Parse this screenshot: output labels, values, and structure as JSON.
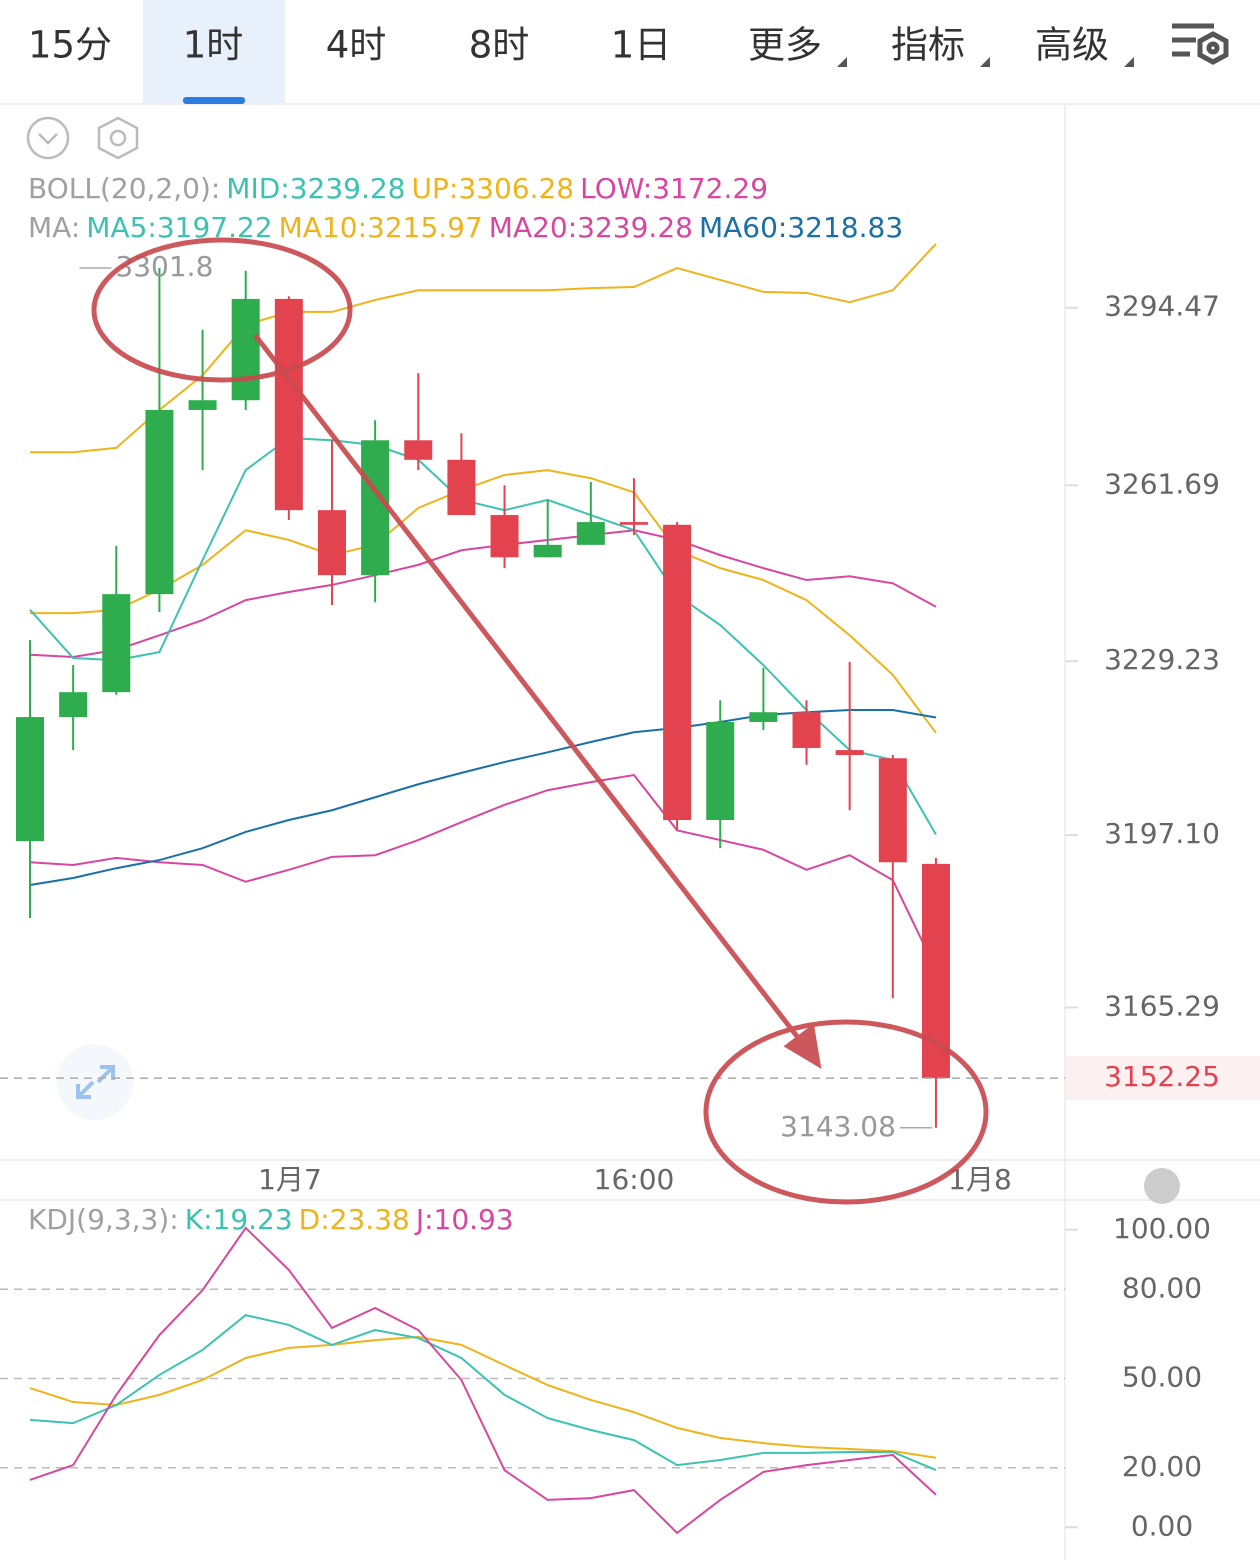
{
  "tabs": {
    "items": [
      "15分",
      "1时",
      "4时",
      "8时",
      "1日",
      "更多",
      "指标",
      "高级"
    ],
    "active": 1
  },
  "price_chart": {
    "type": "candlestick",
    "up_color": "#2eac4e",
    "down_color": "#e3434f",
    "legend": [
      [
        {
          "text": "BOLL(20,2,0):",
          "color": "#a0a0a0"
        },
        {
          "text": "MID:3239.28",
          "color": "#3cc2b0"
        },
        {
          "text": "UP:3306.28",
          "color": "#f0b31a"
        },
        {
          "text": "LOW:3172.29",
          "color": "#d9469f"
        }
      ],
      [
        {
          "text": "MA:",
          "color": "#a0a0a0"
        },
        {
          "text": "MA5:3197.22",
          "color": "#3cc2b0"
        },
        {
          "text": "MA10:3215.97",
          "color": "#f0b31a"
        },
        {
          "text": "MA20:3239.28",
          "color": "#d9469f"
        },
        {
          "text": "MA60:3218.83",
          "color": "#1a6fa8"
        }
      ]
    ],
    "ylim": [
      3137.5,
      3331.9
    ],
    "yticks": [
      3294.47,
      3261.69,
      3229.23,
      {
        "value": 3197.1,
        "label": "3197.10"
      },
      3165.29
    ],
    "candles": [
      {
        "open": 3196.0,
        "high": 3233.1,
        "low": 3181.8,
        "close": 3218.9
      },
      {
        "open": 3218.9,
        "high": 3228.5,
        "low": 3212.8,
        "close": 3223.5
      },
      {
        "open": 3223.5,
        "high": 3250.5,
        "low": 3223.0,
        "close": 3241.6
      },
      {
        "open": 3241.6,
        "high": 3301.8,
        "low": 3238.3,
        "close": 3275.6
      },
      {
        "open": 3275.6,
        "high": 3290.4,
        "low": 3264.5,
        "close": 3277.4
      },
      {
        "open": 3277.4,
        "high": 3301.31,
        "low": 3275.6,
        "close": 3296.1
      },
      {
        "open": 3296.1,
        "high": 3296.6,
        "low": 3255.3,
        "close": 3257.1
      },
      {
        "open": 3257.1,
        "high": 3270.0,
        "low": 3239.6,
        "close": 3245.1
      },
      {
        "open": 3245.1,
        "high": 3273.7,
        "low": 3240.1,
        "close": 3270.0
      },
      {
        "open": 3270.0,
        "high": 3282.4,
        "low": 3264.5,
        "close": 3266.4
      },
      {
        "open": 3266.4,
        "high": 3271.3,
        "low": 3256.2,
        "close": 3256.2
      },
      {
        "open": 3256.2,
        "high": 3261.7,
        "low": 3246.4,
        "close": 3248.4
      },
      {
        "open": 3248.4,
        "high": 3259.0,
        "low": 3248.4,
        "close": 3250.7
      },
      {
        "open": 3250.7,
        "high": 3262.3,
        "low": 3250.7,
        "close": 3254.9
      },
      {
        "open": 3254.9,
        "high": 3263.0,
        "low": 3252.5,
        "close": 3254.4
      },
      {
        "open": 3254.4,
        "high": 3254.9,
        "low": 3198.1,
        "close": 3199.9
      },
      {
        "open": 3199.9,
        "high": 3222.0,
        "low": 3194.7,
        "close": 3218.0
      },
      {
        "open": 3218.0,
        "high": 3228.0,
        "low": 3216.5,
        "close": 3219.8
      },
      {
        "open": 3219.8,
        "high": 3222.0,
        "low": 3210.1,
        "close": 3213.2
      },
      {
        "open": 3212.8,
        "high": 3229.1,
        "low": 3201.7,
        "close": 3211.9
      },
      {
        "open": 3211.3,
        "high": 3211.9,
        "low": 3167.0,
        "close": 3192.1
      },
      {
        "open": 3191.8,
        "high": 3192.9,
        "low": 3143.08,
        "close": 3152.25
      }
    ],
    "series": [
      {
        "name": "UP",
        "color": "#f0b31a",
        "values": [
          3267.8,
          3267.8,
          3268.6,
          3275.6,
          3282.0,
          3291.3,
          3293.7,
          3293.7,
          3295.9,
          3297.7,
          3297.7,
          3297.7,
          3297.7,
          3298.1,
          3298.3,
          3301.8,
          3299.6,
          3297.4,
          3297.2,
          3295.5,
          3297.7,
          3306.28
        ]
      },
      {
        "name": "MA10",
        "color": "#f0b31a",
        "values": [
          3238.1,
          3238.1,
          3238.7,
          3242.4,
          3247.0,
          3253.4,
          3251.6,
          3248.8,
          3250.7,
          3257.5,
          3260.8,
          3263.6,
          3264.5,
          3263.0,
          3260.4,
          3249.7,
          3246.4,
          3244.2,
          3240.5,
          3234.0,
          3226.7,
          3215.97
        ]
      },
      {
        "name": "MA20",
        "color": "#d9469f",
        "values": [
          3230.4,
          3230.0,
          3231.3,
          3234.0,
          3236.8,
          3240.5,
          3242.0,
          3243.3,
          3245.1,
          3247.0,
          3249.7,
          3250.7,
          3251.6,
          3252.5,
          3253.4,
          3251.6,
          3248.8,
          3246.4,
          3244.2,
          3244.9,
          3243.6,
          3239.28
        ]
      },
      {
        "name": "LOW",
        "color": "#d9469f",
        "values": [
          3192.1,
          3191.6,
          3192.9,
          3192.1,
          3191.6,
          3188.5,
          3190.7,
          3193.1,
          3193.4,
          3196.2,
          3199.5,
          3202.7,
          3205.4,
          3206.9,
          3208.2,
          3198.0,
          3196.2,
          3194.4,
          3190.7,
          3193.4,
          3188.8,
          3172.29
        ]
      },
      {
        "name": "MA60",
        "color": "#1a6fa8",
        "values": [
          3187.9,
          3189.2,
          3191.0,
          3192.5,
          3194.7,
          3197.7,
          3199.9,
          3201.7,
          3204.1,
          3206.5,
          3208.6,
          3210.6,
          3212.4,
          3214.3,
          3216.1,
          3216.9,
          3218.0,
          3219.3,
          3219.8,
          3220.2,
          3220.2,
          3218.83
        ]
      },
      {
        "name": "MA5",
        "color": "#3cc2b0",
        "values": [
          3238.7,
          3229.8,
          3229.4,
          3230.9,
          3247.9,
          3264.5,
          3270.4,
          3270.0,
          3269.1,
          3266.4,
          3259.0,
          3257.1,
          3259.0,
          3256.2,
          3253.4,
          3241.4,
          3235.9,
          3228.5,
          3220.2,
          3212.8,
          3211.0,
          3197.22
        ]
      }
    ]
  },
  "x_labels": [
    "1月7",
    "16:00",
    "1月8"
  ],
  "kdj": {
    "type": "line",
    "legend": [
      {
        "text": "KDJ(9,3,3):",
        "color": "#a0a0a0"
      },
      {
        "text": "K:19.23",
        "color": "#3cc2b0"
      },
      {
        "text": "D:23.38",
        "color": "#f0b31a"
      },
      {
        "text": "J:10.93",
        "color": "#d9469f"
      }
    ],
    "ylim": [
      -11,
      110
    ],
    "yticks": [
      {
        "value": 100,
        "label": "100.00"
      },
      {
        "value": 80,
        "label": "80.00"
      },
      {
        "value": 50,
        "label": "50.00"
      },
      {
        "value": 20,
        "label": "20.00"
      },
      {
        "value": 0,
        "label": "0.00"
      }
    ],
    "grid": [
      false,
      true,
      true,
      true,
      false
    ],
    "series": [
      {
        "name": "D",
        "color": "#f0b31a",
        "values": [
          46.8,
          42.1,
          41.1,
          44.5,
          49.5,
          56.9,
          60.3,
          61.3,
          62.9,
          64.0,
          61.3,
          54.5,
          47.8,
          42.8,
          38.7,
          33.4,
          30.0,
          28.3,
          27.0,
          26.3,
          25.6,
          23.38
        ]
      },
      {
        "name": "K",
        "color": "#3cc2b0",
        "values": [
          36.1,
          35.0,
          41.1,
          51.2,
          59.6,
          71.3,
          68.0,
          61.3,
          66.3,
          63.6,
          56.9,
          44.5,
          36.7,
          32.7,
          29.3,
          20.9,
          22.6,
          25.0,
          25.0,
          25.3,
          25.3,
          19.23
        ]
      },
      {
        "name": "J",
        "color": "#d9469f",
        "values": [
          15.9,
          20.9,
          44.5,
          64.6,
          79.7,
          100.6,
          86.5,
          67.0,
          73.7,
          66.3,
          49.5,
          19.2,
          9.2,
          9.8,
          12.5,
          -1.9,
          9.2,
          18.6,
          20.9,
          22.6,
          24.3,
          10.93
        ]
      }
    ]
  }
}
